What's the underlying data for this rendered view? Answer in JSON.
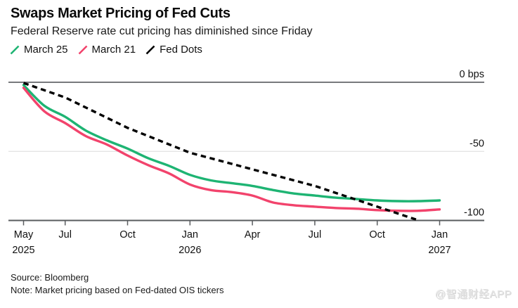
{
  "footer": {
    "source": "Source: Bloomberg",
    "note": "Note: Market pricing based on Fed-dated OIS tickers",
    "watermark": "@智通财经APP"
  },
  "chart_data": {
    "type": "line",
    "title": "Swaps Market Pricing of Fed Cuts",
    "subtitle": "Federal Reserve rate cut pricing has diminished since Friday",
    "unit": "bps",
    "grid": "horizontal-only",
    "legend_position": "top-left",
    "x_axis": {
      "note": "months are offsets from May 2025 (0 = May 2025, 20 = Jan 2027)",
      "ticks": [
        {
          "m": 0,
          "label": "May",
          "year": "2025"
        },
        {
          "m": 2,
          "label": "Jul"
        },
        {
          "m": 5,
          "label": "Oct"
        },
        {
          "m": 8,
          "label": "Jan",
          "year": "2026"
        },
        {
          "m": 11,
          "label": "Apr"
        },
        {
          "m": 14,
          "label": "Jul"
        },
        {
          "m": 17,
          "label": "Oct"
        },
        {
          "m": 20,
          "label": "Jan",
          "year": "2027"
        }
      ]
    },
    "y_axis": {
      "range": [
        -100,
        0
      ],
      "ticks": [
        {
          "v": 0,
          "label": "0 bps"
        },
        {
          "v": -50,
          "label": "-50"
        },
        {
          "v": -100,
          "label": "-100"
        }
      ]
    },
    "colors": {
      "grid_dark": "#77797c",
      "grid_light": "#dcdcdc",
      "axis": "#595c5f",
      "text": "#111111"
    },
    "series": [
      {
        "name": "March 25",
        "color": "#1eb473",
        "style": "solid",
        "points": [
          [
            0,
            -2
          ],
          [
            1,
            -17
          ],
          [
            2,
            -25
          ],
          [
            3,
            -35
          ],
          [
            4,
            -42
          ],
          [
            5,
            -48
          ],
          [
            6,
            -55
          ],
          [
            7,
            -60.5
          ],
          [
            8,
            -67
          ],
          [
            9,
            -71
          ],
          [
            10,
            -73
          ],
          [
            11,
            -75
          ],
          [
            12,
            -78
          ],
          [
            13,
            -80.5
          ],
          [
            14,
            -82
          ],
          [
            15,
            -83.5
          ],
          [
            16,
            -84.5
          ],
          [
            17,
            -85.5
          ],
          [
            18,
            -86
          ],
          [
            19,
            -86
          ],
          [
            20,
            -85.5
          ]
        ]
      },
      {
        "name": "March 21",
        "color": "#f2436c",
        "style": "solid",
        "points": [
          [
            0,
            -4
          ],
          [
            1,
            -21
          ],
          [
            2,
            -29.5
          ],
          [
            3,
            -39
          ],
          [
            4,
            -45
          ],
          [
            5,
            -53
          ],
          [
            6,
            -60
          ],
          [
            7,
            -66
          ],
          [
            8,
            -74
          ],
          [
            9,
            -78
          ],
          [
            10,
            -79.5
          ],
          [
            11,
            -82
          ],
          [
            12,
            -87
          ],
          [
            13,
            -89
          ],
          [
            14,
            -90
          ],
          [
            15,
            -91
          ],
          [
            16,
            -91.5
          ],
          [
            17,
            -92.5
          ],
          [
            18,
            -93
          ],
          [
            19,
            -93
          ],
          [
            20,
            -92
          ]
        ]
      },
      {
        "name": "Fed Dots",
        "color": "#000000",
        "style": "dashed",
        "points": [
          [
            0,
            -0.5
          ],
          [
            2,
            -11
          ],
          [
            5,
            -33
          ],
          [
            8,
            -51
          ],
          [
            11,
            -63
          ],
          [
            14,
            -75
          ],
          [
            17,
            -90
          ],
          [
            19,
            -100
          ]
        ]
      }
    ]
  }
}
